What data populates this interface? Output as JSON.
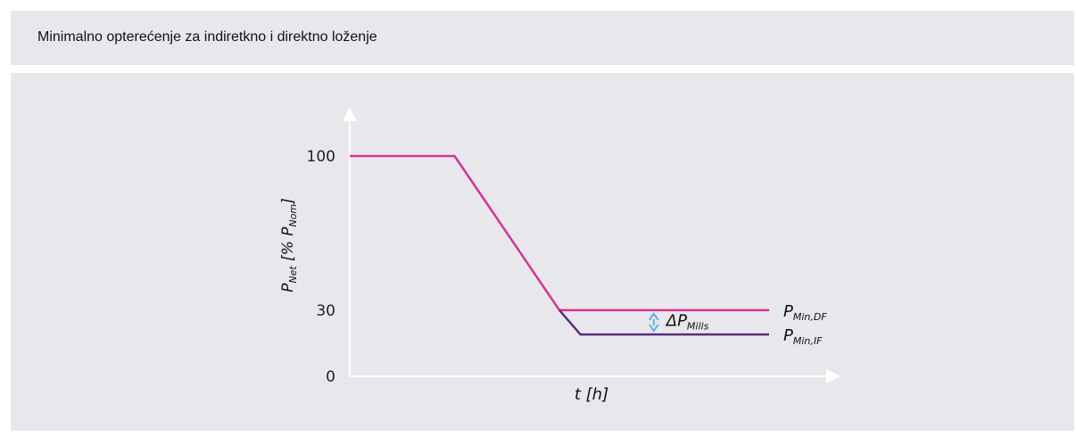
{
  "header": {
    "title": "Minimalno opterećenje za indiretkno i direktno loženje"
  },
  "chart_data": {
    "type": "line",
    "ylabel_main": "P",
    "ylabel_sub": "Net",
    "ylabel_rest": " [% P",
    "ylabel_sub2": "Nom",
    "ylabel_close": "]",
    "xlabel": "t [h]",
    "y_ticks": [
      "100",
      "30",
      "0"
    ],
    "y_tick_values": [
      100,
      30,
      0
    ],
    "ylim": [
      0,
      123
    ],
    "xlim": [
      0,
      10
    ],
    "series": [
      {
        "name_main": "P",
        "name_sub": "Min,DF",
        "color": "#d6338f",
        "points": [
          [
            0,
            100
          ],
          [
            2,
            100
          ],
          [
            4,
            30
          ],
          [
            8,
            30
          ]
        ]
      },
      {
        "name_main": "P",
        "name_sub": "Min,IF",
        "color": "#5a2e7e",
        "points": [
          [
            4,
            30
          ],
          [
            4.4,
            19
          ],
          [
            8,
            19
          ]
        ]
      }
    ],
    "annotation": {
      "main": "ΔP",
      "sub": "Mills",
      "color": "#5bb3e6",
      "x": 5.8,
      "y_from": 30,
      "y_to": 19
    }
  }
}
